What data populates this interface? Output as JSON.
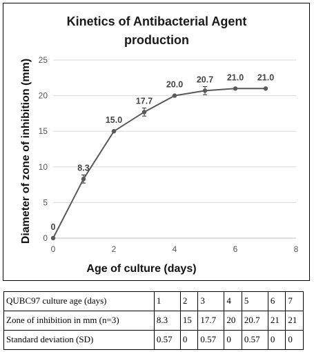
{
  "chart_data": {
    "type": "line",
    "title_lines": [
      "Kinetics of Antibacterial  Agent",
      "production"
    ],
    "xlabel": "Age of culture (days)",
    "ylabel": "Diameter of zone of inhibition  (mm)",
    "xlim": [
      0,
      8
    ],
    "ylim": [
      0,
      25
    ],
    "xticks": [
      "0",
      "2",
      "4",
      "6",
      "8"
    ],
    "yticks": [
      "0",
      "5",
      "10",
      "15",
      "20",
      "25"
    ],
    "grid": "horizontal",
    "legend": "none",
    "series": [
      {
        "x": [
          0,
          1,
          2,
          3,
          4,
          5,
          6,
          7
        ],
        "values": [
          0,
          8.3,
          15.0,
          17.7,
          20.0,
          20.7,
          21.0,
          21.0
        ],
        "error": [
          0,
          0.57,
          0,
          0.57,
          0,
          0.57,
          0,
          0
        ],
        "labels": [
          "0",
          "8.3",
          "15.0",
          "17.7",
          "20.0",
          "20.7",
          "21.0",
          "21.0"
        ]
      }
    ],
    "colors": {
      "line": "#595959",
      "marker": "#595959",
      "grid": "#d9d9d9"
    }
  },
  "table": {
    "rows": [
      [
        "QUBC97 culture age (days)",
        "1",
        "2",
        "3",
        "4",
        "5",
        "6",
        "7"
      ],
      [
        "Zone of inhibition in mm (n=3)",
        "8.3",
        "15",
        "17.7",
        "20",
        "20.7",
        "21",
        "21"
      ],
      [
        "Standard deviation (SD)",
        "0.57",
        "0",
        "0.57",
        "0",
        "0.57",
        "0",
        "0"
      ]
    ]
  }
}
